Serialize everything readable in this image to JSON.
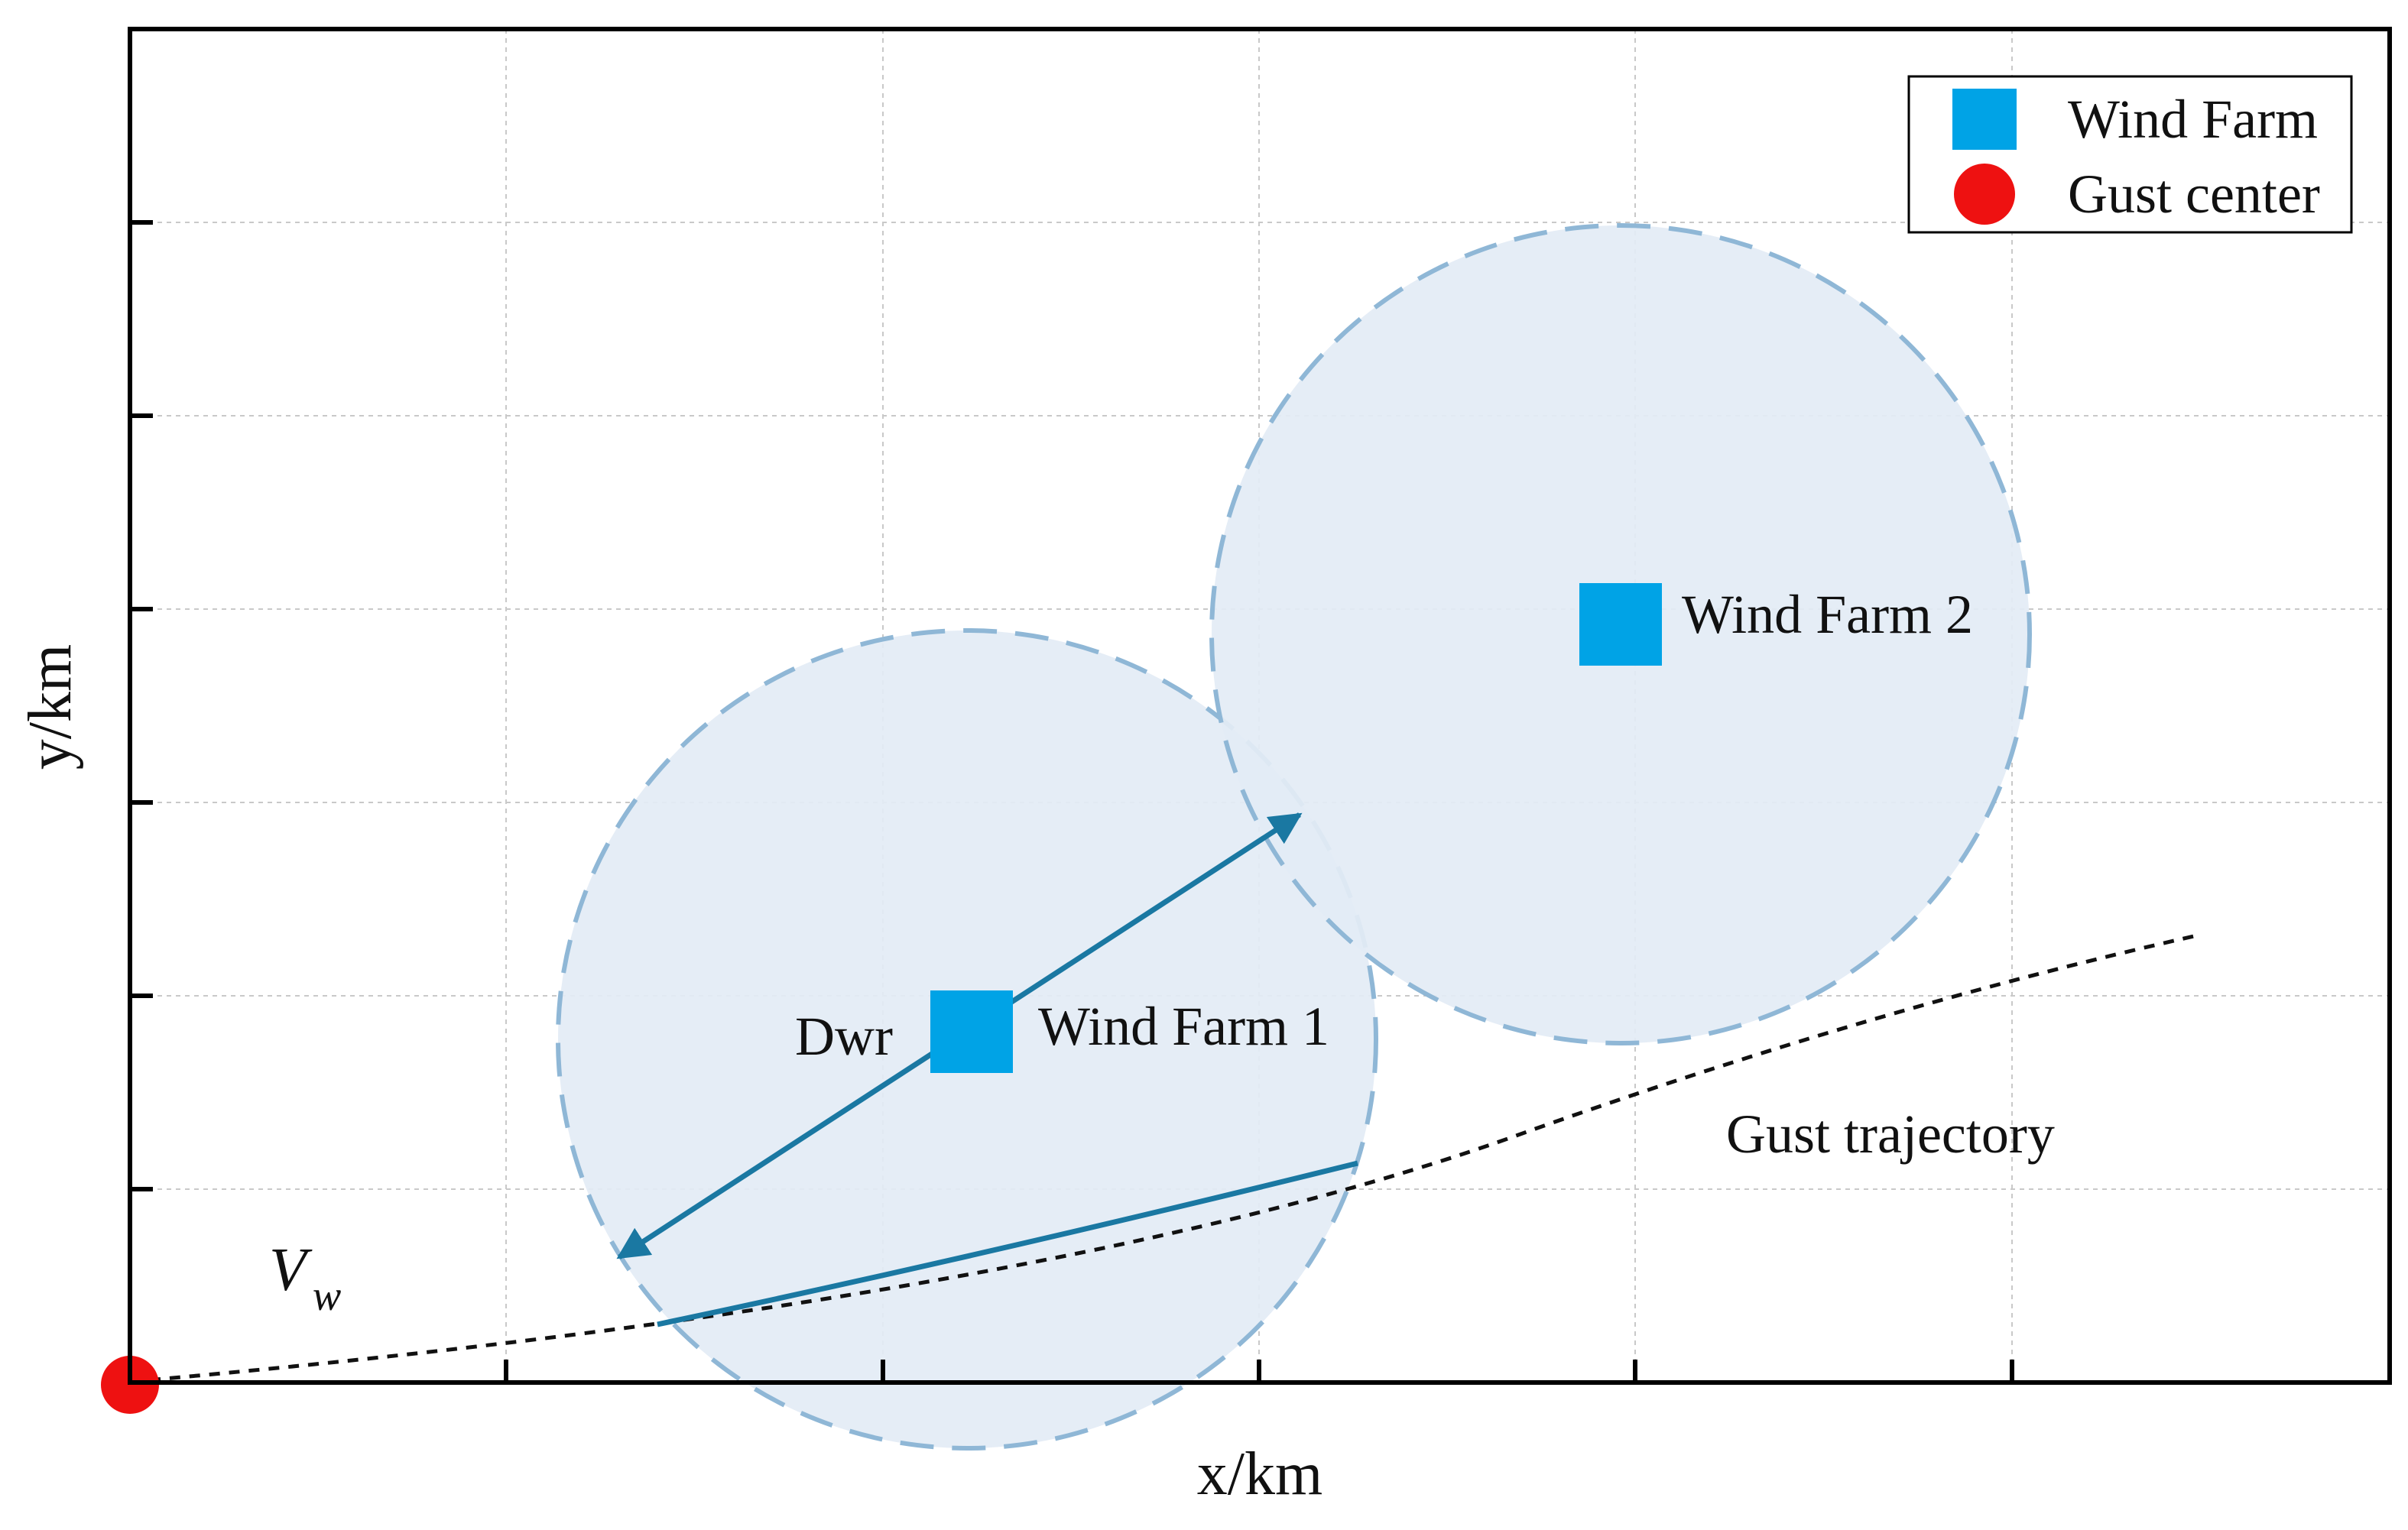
{
  "axes": {
    "x_label": "x/km",
    "y_label": "y/km"
  },
  "legend": {
    "items": [
      {
        "label": "Wind Farm",
        "marker": "square",
        "color": "#00a3e6"
      },
      {
        "label": "Gust center",
        "marker": "circle",
        "color": "#ee1111"
      }
    ]
  },
  "annotations": {
    "wind_farm_1": "Wind Farm 1",
    "wind_farm_2": "Wind Farm 2",
    "dwr": "Dwr",
    "gust_trajectory": "Gust trajectory",
    "vw_main": "V",
    "vw_sub": "w"
  },
  "colors": {
    "circle_fill": "#e3ecf5",
    "circle_stroke": "#8fb7d6",
    "arrow": "#1a78a2",
    "wind_farm": "#00a3e6",
    "gust_center": "#ee1111",
    "grid": "#c9c9c9"
  },
  "icons": {
    "wind_farm_marker": "square-icon",
    "gust_center_marker": "circle-icon"
  }
}
